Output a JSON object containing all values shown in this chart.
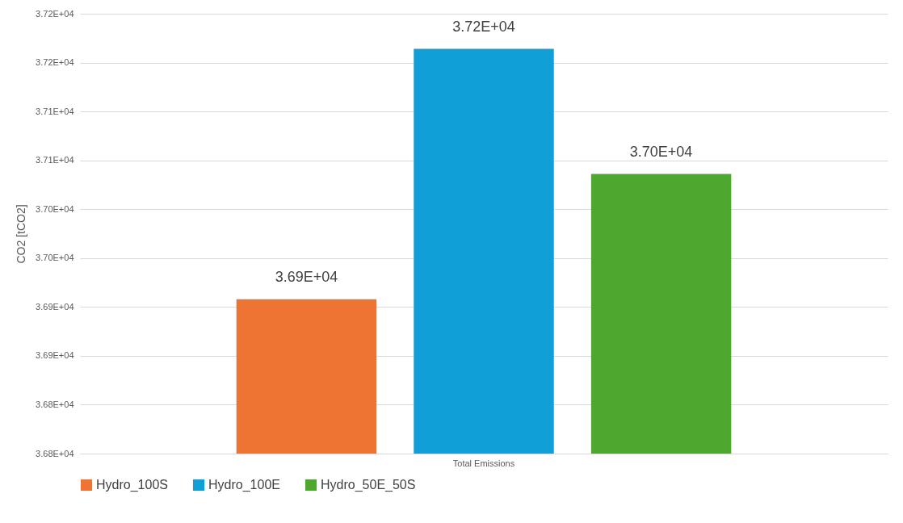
{
  "chart_data": {
    "type": "bar",
    "ylabel": "CO2 [tCO2]",
    "categories": [
      "Total Emissions"
    ],
    "series": [
      {
        "name": "Hydro_100S",
        "color": "#ed7432",
        "values": [
          36908
        ],
        "value_labels": [
          "3.69E+04"
        ]
      },
      {
        "name": "Hydro_100E",
        "color": "#109fd7",
        "values": [
          37164
        ],
        "value_labels": [
          "3.72E+04"
        ]
      },
      {
        "name": "Hydro_50E_50S",
        "color": "#4ea72e",
        "values": [
          37036
        ],
        "value_labels": [
          "3.70E+04"
        ]
      }
    ],
    "ylim": [
      36750,
      37200
    ],
    "yticks": [
      {
        "value": 36750,
        "label": "3.68E+04"
      },
      {
        "value": 36800,
        "label": "3.68E+04"
      },
      {
        "value": 36850,
        "label": "3.69E+04"
      },
      {
        "value": 36900,
        "label": "3.69E+04"
      },
      {
        "value": 36950,
        "label": "3.70E+04"
      },
      {
        "value": 37000,
        "label": "3.70E+04"
      },
      {
        "value": 37050,
        "label": "3.71E+04"
      },
      {
        "value": 37100,
        "label": "3.71E+04"
      },
      {
        "value": 37150,
        "label": "3.72E+04"
      },
      {
        "value": 37200,
        "label": "3.72E+04"
      }
    ],
    "grid": "y",
    "legend": "bottom"
  }
}
